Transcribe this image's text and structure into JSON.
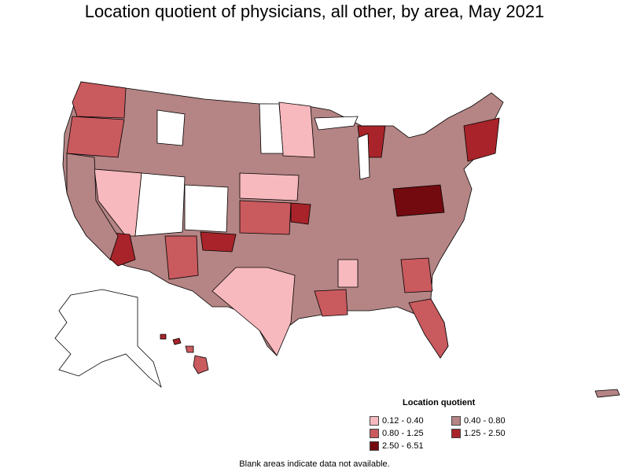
{
  "title": "Location quotient of physicians, all other, by area, May 2021",
  "legend": {
    "title": "Location quotient",
    "items": [
      {
        "label": "0.12 - 0.40",
        "color": "#f7b9bd"
      },
      {
        "label": "0.40 - 0.80",
        "color": "#b58484"
      },
      {
        "label": "0.80 - 1.25",
        "color": "#c95a5e"
      },
      {
        "label": "1.25 - 2.50",
        "color": "#a8242a"
      },
      {
        "label": "2.50 - 6.51",
        "color": "#730a0f"
      }
    ]
  },
  "footnote": "Blank areas indicate data not available.",
  "colors": {
    "no_data": "#ffffff",
    "border": "#000000"
  }
}
